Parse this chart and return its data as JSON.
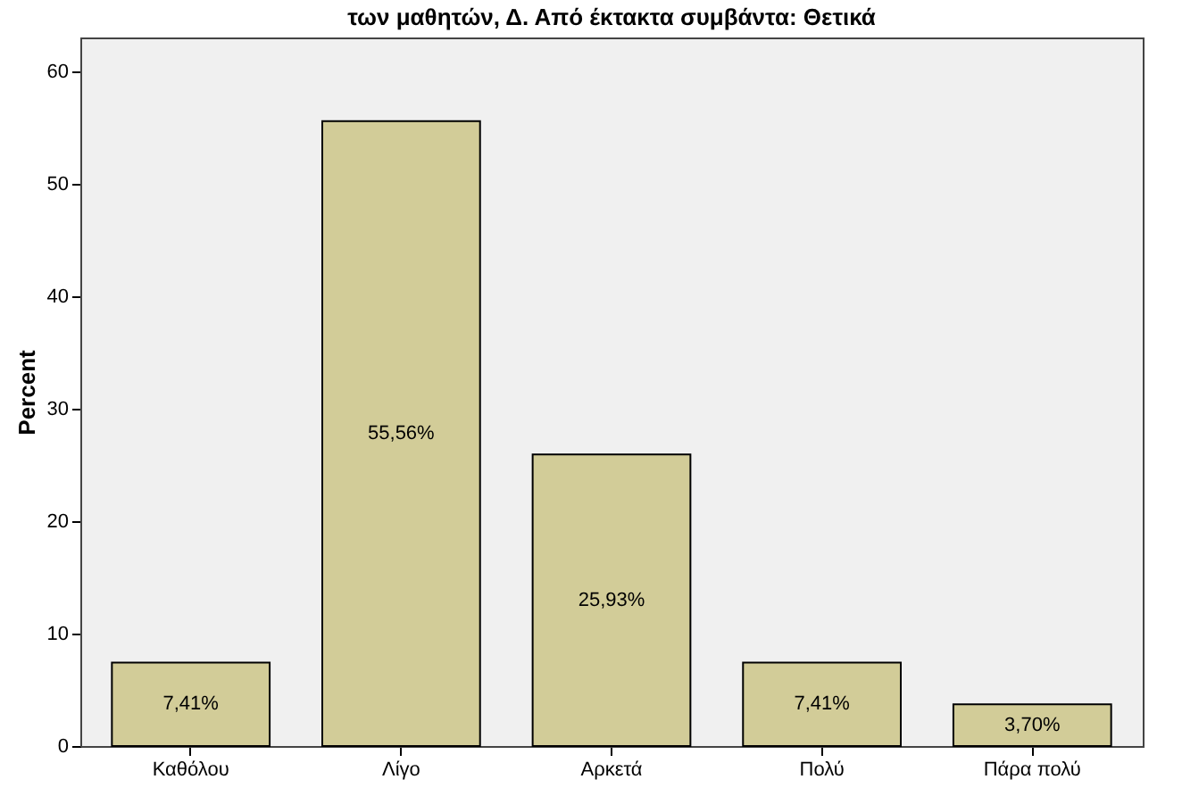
{
  "chart_data": {
    "type": "bar",
    "title": "των μαθητών, Δ. Από έκτακτα συμβάντα: Θετικά",
    "ylabel": "Percent",
    "categories": [
      "Καθόλου",
      "Λίγο",
      "Αρκετά",
      "Πολύ",
      "Πάρα πολύ"
    ],
    "values": [
      7.41,
      55.56,
      25.93,
      7.41,
      3.7
    ],
    "value_labels": [
      "7,41%",
      "55,56%",
      "25,93%",
      "7,41%",
      "3,70%"
    ],
    "color": "#d2cc98",
    "ylim": [
      0,
      63
    ],
    "yticks": [
      0,
      10,
      20,
      30,
      40,
      50,
      60
    ],
    "grid": false
  }
}
